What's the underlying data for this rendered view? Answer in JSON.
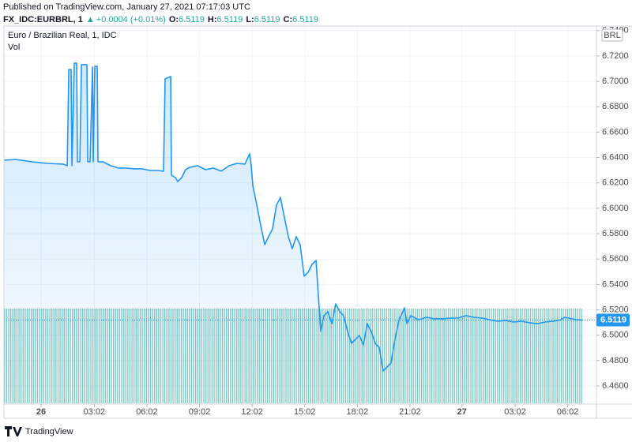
{
  "chart_data": {
    "type": "area",
    "source": "Published on TradingView.com, January 27, 2021 07:17:03 UTC",
    "symbol": "FX_IDC:EURBRL, 1",
    "change": "+0.0004 (+0.01%)",
    "ohlc": [
      {
        "label": "O:",
        "value": "6.5119"
      },
      {
        "label": "H:",
        "value": "6.5119"
      },
      {
        "label": "L:",
        "value": "6.5119"
      },
      {
        "label": "C:",
        "value": "6.5119"
      }
    ],
    "title": "Euro / Brazilian Real, 1, IDC",
    "volume_label": "Vol",
    "currency": "BRL",
    "brand": "TradingView",
    "last_price_label": "6.5119",
    "color": "#2196f3",
    "grid": true,
    "xlim": [
      -2.12,
      31.67
    ],
    "ylim": [
      6.4457,
      6.7436
    ],
    "xticks": [
      {
        "value": 0,
        "label": "26"
      },
      {
        "value": 3.033,
        "label": "03:02"
      },
      {
        "value": 6.033,
        "label": "06:02"
      },
      {
        "value": 9.033,
        "label": "09:02"
      },
      {
        "value": 12.033,
        "label": "12:02"
      },
      {
        "value": 15.033,
        "label": "15:02"
      },
      {
        "value": 18.033,
        "label": "18:02"
      },
      {
        "value": 21.033,
        "label": "21:02"
      },
      {
        "value": 24,
        "label": "27"
      },
      {
        "value": 27.033,
        "label": "03:02"
      },
      {
        "value": 30.033,
        "label": "06:02"
      }
    ],
    "yticks": [
      {
        "value": 6.46,
        "label": "6.4600"
      },
      {
        "value": 6.48,
        "label": "6.4800"
      },
      {
        "value": 6.5,
        "label": "6.5000"
      },
      {
        "value": 6.52,
        "label": "6.5200"
      },
      {
        "value": 6.54,
        "label": "6.5400"
      },
      {
        "value": 6.56,
        "label": "6.5600"
      },
      {
        "value": 6.58,
        "label": "6.5800"
      },
      {
        "value": 6.6,
        "label": "6.6000"
      },
      {
        "value": 6.62,
        "label": "6.6200"
      },
      {
        "value": 6.64,
        "label": "6.6400"
      },
      {
        "value": 6.66,
        "label": "6.6600"
      },
      {
        "value": 6.68,
        "label": "6.6800"
      },
      {
        "value": 6.7,
        "label": "6.7000"
      },
      {
        "value": 6.72,
        "label": "6.7200"
      },
      {
        "value": 6.74,
        "label": "6.7400"
      }
    ],
    "x": [
      -2.12,
      -1.44,
      -0.54,
      0.36,
      1.26,
      1.49,
      1.58,
      1.71,
      1.76,
      1.89,
      2.03,
      2.07,
      2.21,
      2.3,
      2.61,
      2.66,
      2.79,
      2.93,
      2.97,
      3.06,
      3.2,
      3.24,
      3.51,
      3.96,
      4.41,
      4.86,
      5.32,
      5.77,
      6.22,
      6.67,
      6.98,
      7.07,
      7.39,
      7.43,
      7.66,
      7.79,
      8.02,
      8.24,
      8.47,
      8.92,
      9.37,
      9.82,
      10.27,
      10.72,
      11.17,
      11.62,
      11.89,
      11.98,
      12.07,
      12.3,
      12.52,
      12.75,
      12.97,
      13.2,
      13.42,
      13.65,
      13.87,
      14.1,
      14.32,
      14.55,
      14.77,
      15.0,
      15.23,
      15.45,
      15.68,
      15.81,
      15.95,
      16.13,
      16.35,
      16.58,
      16.8,
      17.03,
      17.25,
      17.48,
      17.7,
      17.93,
      18.15,
      18.38,
      18.6,
      18.83,
      19.05,
      19.28,
      19.5,
      19.73,
      19.95,
      20.18,
      20.41,
      20.63,
      20.72,
      20.86,
      21.08,
      21.53,
      21.98,
      22.43,
      22.88,
      23.33,
      23.78,
      24.23,
      24.68,
      25.14,
      25.59,
      26.04,
      26.49,
      26.94,
      27.39,
      27.84,
      28.29,
      28.74,
      29.19,
      29.64,
      29.86,
      30.09,
      30.54,
      30.86
    ],
    "values": [
      6.6379,
      6.6385,
      6.6367,
      6.6354,
      6.6348,
      6.6336,
      6.7094,
      6.7094,
      6.6336,
      6.7144,
      6.7144,
      6.6367,
      6.6367,
      6.7132,
      6.7132,
      6.6367,
      6.6367,
      6.7113,
      6.6367,
      6.7119,
      6.7119,
      6.6367,
      6.6367,
      6.6336,
      6.6317,
      6.6317,
      6.6311,
      6.6311,
      6.6298,
      6.6298,
      6.6292,
      6.702,
      6.7038,
      6.6261,
      6.6242,
      6.6211,
      6.6242,
      6.6304,
      6.6323,
      6.6336,
      6.6304,
      6.6317,
      6.6292,
      6.6336,
      6.6354,
      6.6348,
      6.6429,
      6.6336,
      6.618,
      6.6024,
      6.5869,
      6.5713,
      6.5776,
      6.5838,
      6.6024,
      6.6086,
      6.5931,
      6.5776,
      6.5682,
      6.5776,
      6.5713,
      6.5465,
      6.5496,
      6.5558,
      6.5589,
      6.5309,
      6.5029,
      6.5154,
      6.5185,
      6.5091,
      6.5247,
      6.5185,
      6.5154,
      6.5029,
      6.4936,
      6.4967,
      6.4998,
      6.4924,
      6.5091,
      6.5029,
      6.4936,
      6.4905,
      6.4718,
      6.4749,
      6.478,
      6.4967,
      6.5122,
      6.5185,
      6.5216,
      6.5091,
      6.5154,
      6.5122,
      6.5141,
      6.5129,
      6.5129,
      6.5135,
      6.5135,
      6.5154,
      6.5141,
      6.5135,
      6.5122,
      6.511,
      6.5116,
      6.5104,
      6.511,
      6.5098,
      6.5091,
      6.5104,
      6.511,
      6.5122,
      6.5141,
      6.5135,
      6.5122,
      6.5119
    ]
  }
}
